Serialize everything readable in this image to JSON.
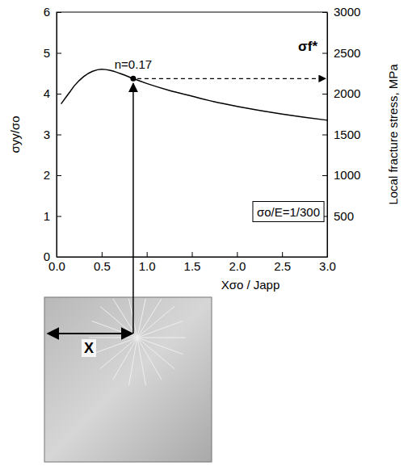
{
  "chart_data": {
    "type": "line",
    "x_label": "Xσo / Japp",
    "y_label": "σyy/σo",
    "y2_label": "Local fracture stress, MPa",
    "x": [
      0.05,
      0.1,
      0.15,
      0.2,
      0.3,
      0.4,
      0.5,
      0.6,
      0.7,
      0.85,
      1.0,
      1.25,
      1.5,
      1.75,
      2.0,
      2.25,
      2.5,
      2.75,
      3.0
    ],
    "values": [
      3.75,
      3.9,
      4.05,
      4.2,
      4.42,
      4.55,
      4.6,
      4.57,
      4.5,
      4.37,
      4.25,
      4.08,
      3.94,
      3.8,
      3.69,
      3.59,
      3.5,
      3.42,
      3.35
    ],
    "color": "#000000",
    "line_style": "solid",
    "xlim": [
      0,
      3
    ],
    "xticks": [
      {
        "value": 0,
        "label": "0.0"
      },
      {
        "value": 0.5,
        "label": "0.5"
      },
      {
        "value": 1,
        "label": "1.0"
      },
      {
        "value": 1.5,
        "label": "1.5"
      },
      {
        "value": 2,
        "label": "2.0"
      },
      {
        "value": 2.5,
        "label": "2.5"
      },
      {
        "value": 3,
        "label": "3.0"
      }
    ],
    "ylim": [
      0,
      6
    ],
    "yticks": [
      0,
      1,
      2,
      3,
      4,
      5,
      6
    ],
    "y2lim": [
      0,
      3000
    ],
    "y2ticks": [
      500,
      1000,
      1500,
      2000,
      2500,
      3000
    ],
    "point": {
      "x": 0.85,
      "y": 4.37
    },
    "annotations": [
      {
        "text": "n=0.17"
      },
      {
        "text": "σf*"
      },
      {
        "text": "σo/E=1/300"
      },
      {
        "text": "X"
      }
    ]
  }
}
